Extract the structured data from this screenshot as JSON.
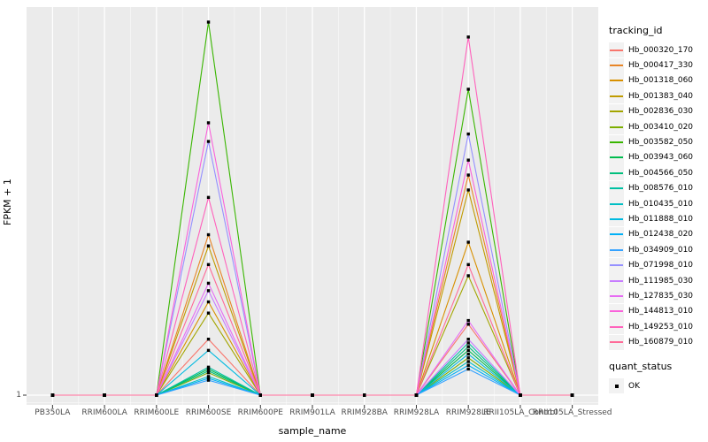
{
  "chart_data": {
    "type": "line",
    "title": "",
    "xlabel": "sample_name",
    "ylabel": "FPKM + 1",
    "x_categories": [
      "PB350LA",
      "RRIM600LA",
      "RRIM600LE",
      "RRIM600SE",
      "RRIM600PE",
      "RRIM901LA",
      "RRIM928BA",
      "RRIM928LA",
      "RRIM928LE",
      "RRII105LA_Control",
      "RRII105LA_Stressed"
    ],
    "y_tick_labels": [
      "1"
    ],
    "baseline_value": 1,
    "values_unit": "percent of panel height above the y=1 baseline (upper y-axis unlabeled; heights estimated from pixels)",
    "legend_title": "tracking_id",
    "legend_position": "right",
    "grid": "on",
    "panel_background": "#EBEBEB",
    "gridline_color": "#FFFFFF",
    "point_marker": "black-square",
    "series": [
      {
        "name": "Hb_000320_170",
        "color": "#F8766D",
        "values": [
          0,
          0,
          0,
          15,
          0,
          0,
          0,
          0,
          19,
          0,
          0
        ]
      },
      {
        "name": "Hb_000417_330",
        "color": "#E88526",
        "values": [
          0,
          0,
          0,
          43,
          0,
          0,
          0,
          0,
          59,
          0,
          0
        ]
      },
      {
        "name": "Hb_001318_060",
        "color": "#D89000",
        "values": [
          0,
          0,
          0,
          25,
          0,
          0,
          0,
          0,
          41,
          0,
          0
        ]
      },
      {
        "name": "Hb_001383_040",
        "color": "#C09B00",
        "values": [
          0,
          0,
          0,
          40,
          0,
          0,
          0,
          0,
          55,
          0,
          0
        ]
      },
      {
        "name": "Hb_002836_030",
        "color": "#A3A500",
        "values": [
          0,
          0,
          0,
          22,
          0,
          0,
          0,
          0,
          32,
          0,
          0
        ]
      },
      {
        "name": "Hb_003410_020",
        "color": "#7CAE00",
        "values": [
          0,
          0,
          0,
          6,
          0,
          0,
          0,
          0,
          10,
          0,
          0
        ]
      },
      {
        "name": "Hb_003582_050",
        "color": "#39B600",
        "values": [
          0,
          0,
          0,
          100,
          0,
          0,
          0,
          0,
          82,
          0,
          0
        ]
      },
      {
        "name": "Hb_003943_060",
        "color": "#00BB4E",
        "values": [
          0,
          0,
          0,
          7,
          0,
          0,
          0,
          0,
          12,
          0,
          0
        ]
      },
      {
        "name": "Hb_004566_050",
        "color": "#00BF7D",
        "values": [
          0,
          0,
          0,
          6.5,
          0,
          0,
          0,
          0,
          13,
          0,
          0
        ]
      },
      {
        "name": "Hb_008576_010",
        "color": "#00C1A3",
        "values": [
          0,
          0,
          0,
          7.5,
          0,
          0,
          0,
          0,
          14,
          0,
          0
        ]
      },
      {
        "name": "Hb_010435_010",
        "color": "#00BFC4",
        "values": [
          0,
          0,
          0,
          5,
          0,
          0,
          0,
          0,
          9,
          0,
          0
        ]
      },
      {
        "name": "Hb_011888_010",
        "color": "#00BAE0",
        "values": [
          0,
          0,
          0,
          12,
          0,
          0,
          0,
          0,
          11,
          0,
          0
        ]
      },
      {
        "name": "Hb_012438_020",
        "color": "#00B0F6",
        "values": [
          0,
          0,
          0,
          4.5,
          0,
          0,
          0,
          0,
          8,
          0,
          0
        ]
      },
      {
        "name": "Hb_034909_010",
        "color": "#35A2FF",
        "values": [
          0,
          0,
          0,
          4,
          0,
          0,
          0,
          0,
          7,
          0,
          0
        ]
      },
      {
        "name": "Hb_071998_010",
        "color": "#9590FF",
        "values": [
          0,
          0,
          0,
          68,
          0,
          0,
          0,
          0,
          70,
          0,
          0
        ]
      },
      {
        "name": "Hb_111985_030",
        "color": "#C77CFF",
        "values": [
          0,
          0,
          0,
          28,
          0,
          0,
          0,
          0,
          15,
          0,
          0
        ]
      },
      {
        "name": "Hb_127835_030",
        "color": "#E76BF3",
        "values": [
          0,
          0,
          0,
          30,
          0,
          0,
          0,
          0,
          20,
          0,
          0
        ]
      },
      {
        "name": "Hb_144813_010",
        "color": "#FA62DB",
        "values": [
          0,
          0,
          0,
          73,
          0,
          0,
          0,
          0,
          63,
          0,
          0
        ]
      },
      {
        "name": "Hb_149253_010",
        "color": "#FF62BC",
        "values": [
          0,
          0,
          0,
          53,
          0,
          0,
          0,
          0,
          96,
          0,
          0
        ]
      },
      {
        "name": "Hb_160879_010",
        "color": "#FF6A98",
        "values": [
          0,
          0,
          0,
          35,
          0,
          0,
          0,
          0,
          35,
          0,
          0
        ]
      }
    ],
    "legend2_title": "quant_status",
    "quant_status": {
      "items": [
        {
          "label": "OK",
          "marker": "black-square"
        }
      ]
    }
  }
}
